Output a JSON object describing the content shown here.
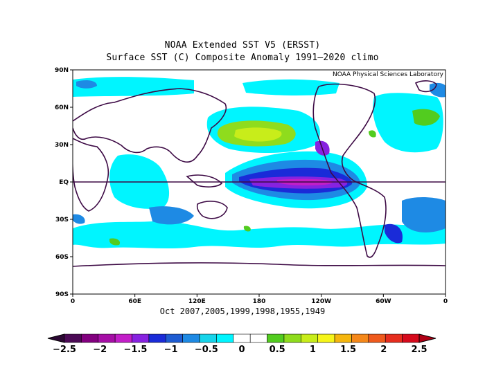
{
  "title_line1": "NOAA Extended SST V5 (ERSST)",
  "title_line2": "Surface SST (C) Composite Anomaly 1991–2020 climo",
  "credit": "NOAA Physical Sciences Laboratory",
  "caption": "Oct 2007,2005,1999,1998,1955,1949",
  "lat_ticks": [
    {
      "label": "90N",
      "lat": 90
    },
    {
      "label": "60N",
      "lat": 60
    },
    {
      "label": "30N",
      "lat": 30
    },
    {
      "label": "EQ",
      "lat": 0
    },
    {
      "label": "30S",
      "lat": -30
    },
    {
      "label": "60S",
      "lat": -60
    },
    {
      "label": "90S",
      "lat": -90
    }
  ],
  "lon_ticks": [
    {
      "label": "0",
      "lon": 0
    },
    {
      "label": "60E",
      "lon": 60
    },
    {
      "label": "120E",
      "lon": 120
    },
    {
      "label": "180",
      "lon": 180
    },
    {
      "label": "120W",
      "lon": 240
    },
    {
      "label": "60W",
      "lon": 300
    },
    {
      "label": "0",
      "lon": 360
    }
  ],
  "colorbar": {
    "colors": [
      "#4b0a55",
      "#82007f",
      "#a60ea6",
      "#c21ec8",
      "#8722e0",
      "#1a2bd8",
      "#1e5cd2",
      "#1e8ae4",
      "#17d4ea",
      "#00f5ff",
      "#ffffff",
      "#ffffff",
      "#52cc1f",
      "#8fdc1d",
      "#c8ed1a",
      "#f6f51a",
      "#f5b60e",
      "#f5881a",
      "#ef5a1d",
      "#e62d1e",
      "#d60a1c"
    ],
    "labels": [
      {
        "text": "−2.5",
        "value": -2.5
      },
      {
        "text": "−2",
        "value": -2
      },
      {
        "text": "−1.5",
        "value": -1.5
      },
      {
        "text": "−1",
        "value": -1
      },
      {
        "text": "−0.5",
        "value": -0.5
      },
      {
        "text": "0",
        "value": 0
      },
      {
        "text": "0.5",
        "value": 0.5
      },
      {
        "text": "1",
        "value": 1
      },
      {
        "text": "1.5",
        "value": 1.5
      },
      {
        "text": "2",
        "value": 2
      },
      {
        "text": "2.5",
        "value": 2.5
      }
    ]
  }
}
